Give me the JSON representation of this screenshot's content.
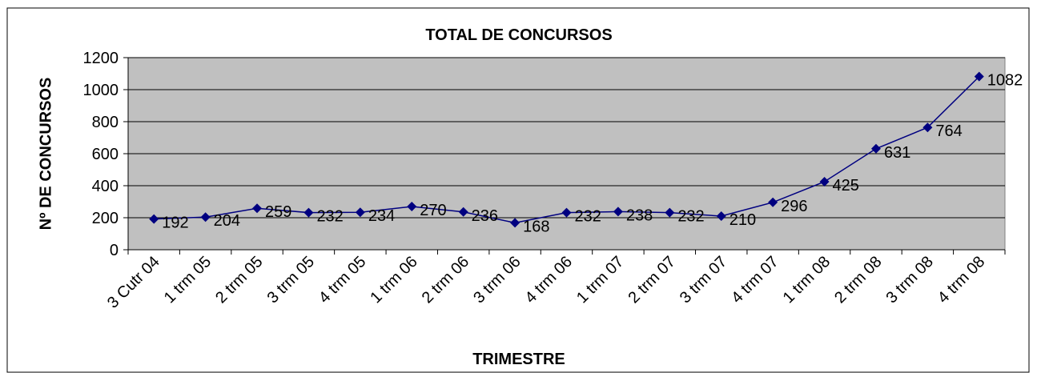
{
  "chart_data": {
    "type": "line",
    "title": "TOTAL DE CONCURSOS",
    "x_label": "TRIMESTRE",
    "y_label": "Nº DE CONCURSOS",
    "categories": [
      "3 Cutr 04",
      "1 trm 05",
      "2 trm 05",
      "3 trm 05",
      "4 trm 05",
      "1 trm 06",
      "2 trm 06",
      "3 trm 06",
      "4 trm 06",
      "1 trm 07",
      "2 trm 07",
      "3 trm 07",
      "4 trm 07",
      "1 trm 08",
      "2 trm 08",
      "3 trm 08",
      "4 trm 08"
    ],
    "series": [
      {
        "name": "TOTAL DE CONCURSOS",
        "color": "#000080",
        "values": [
          192,
          204,
          259,
          232,
          234,
          270,
          236,
          168,
          232,
          238,
          232,
          210,
          296,
          425,
          631,
          764,
          1082
        ]
      }
    ],
    "ylim": [
      0,
      1200
    ],
    "yticks": [
      0,
      200,
      400,
      600,
      800,
      1000,
      1200
    ],
    "grid": true
  }
}
